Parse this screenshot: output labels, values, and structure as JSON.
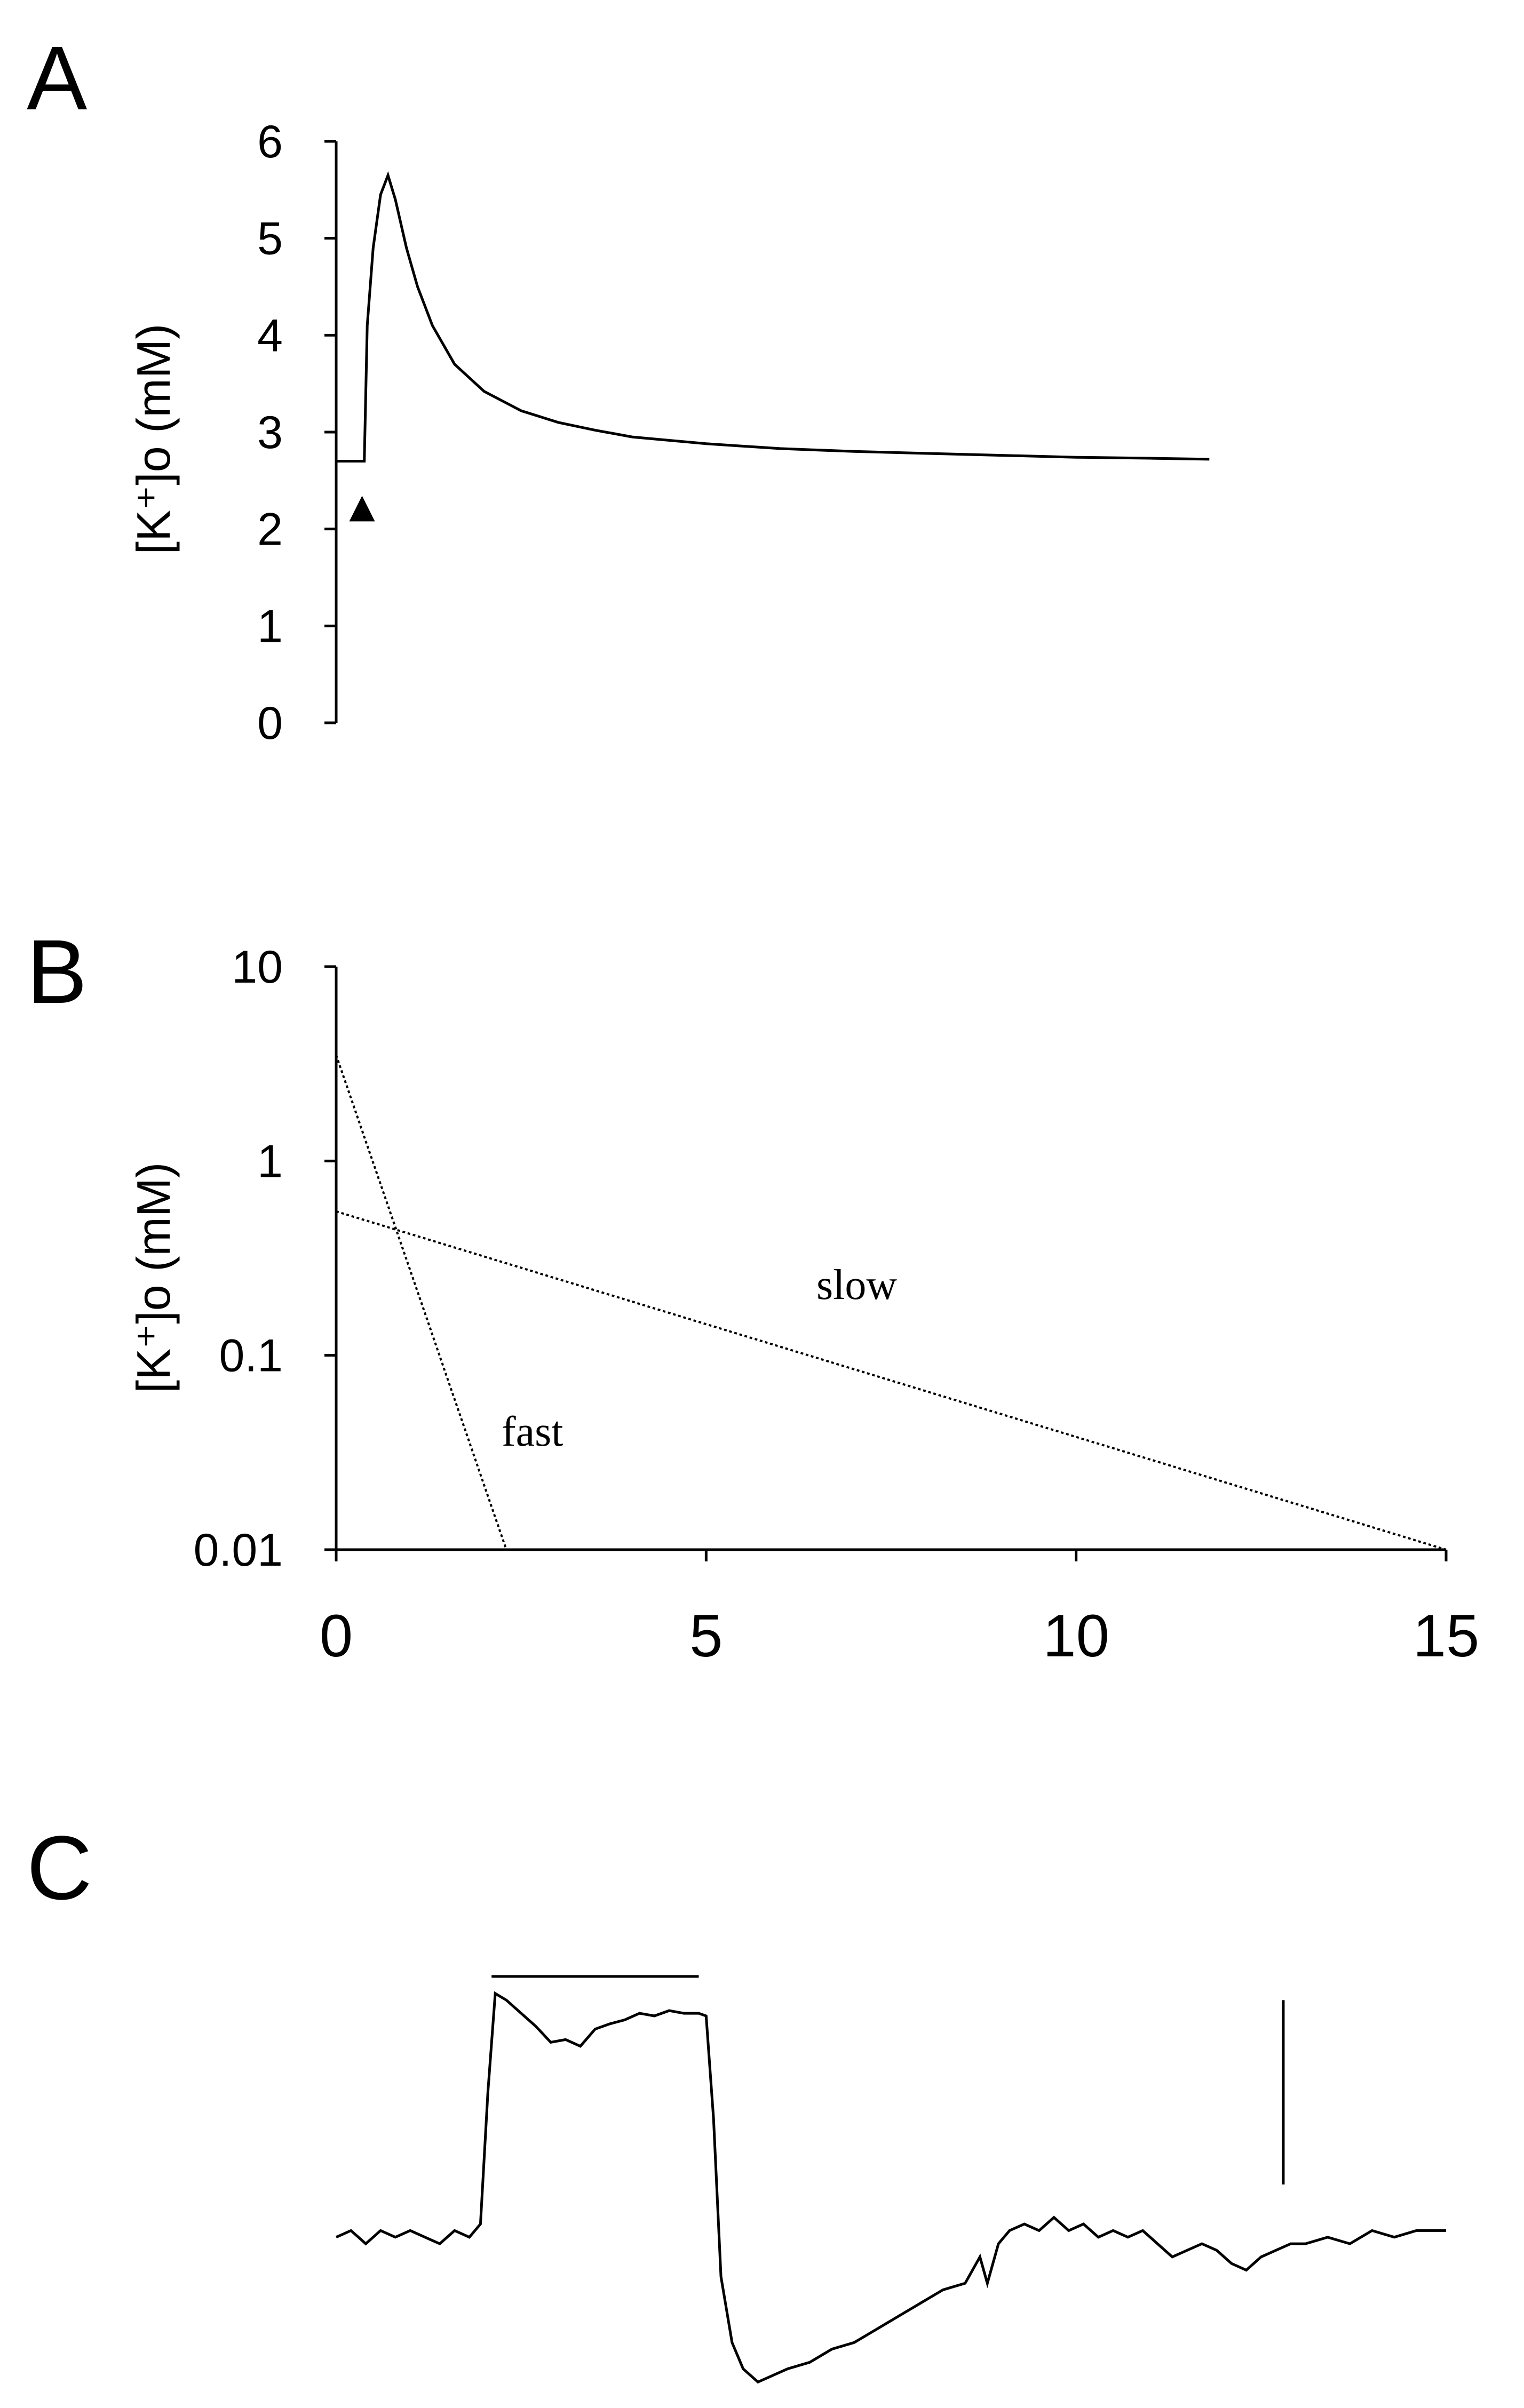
{
  "chart_data": [
    {
      "panel": "A",
      "type": "line",
      "ylabel": "[K⁺]o (mM)",
      "ylim": [
        0,
        6
      ],
      "yticks": [
        "0",
        "1",
        "2",
        "3",
        "4",
        "5",
        "6"
      ],
      "xlim": [
        0,
        15
      ],
      "series": [
        {
          "x": [
            0,
            0.38,
            0.42,
            0.5,
            0.6,
            0.7,
            0.8,
            0.95,
            1.1,
            1.3,
            1.6,
            2.0,
            2.5,
            3.0,
            3.5,
            4.0,
            5.0,
            6.0,
            7.0,
            8.0,
            9.0,
            10.0,
            11.0,
            11.8
          ],
          "y": [
            2.7,
            2.7,
            4.1,
            4.9,
            5.45,
            5.65,
            5.4,
            4.9,
            4.5,
            4.1,
            3.7,
            3.42,
            3.22,
            3.1,
            3.02,
            2.95,
            2.88,
            2.83,
            2.8,
            2.78,
            2.76,
            2.74,
            2.73,
            2.72
          ]
        }
      ],
      "annotations": [
        {
          "type": "triangle-marker",
          "x": 0.35,
          "y": 2.2
        }
      ]
    },
    {
      "panel": "B",
      "type": "line",
      "ylabel": "[K⁺]o (mM)",
      "yscale": "log",
      "ylim": [
        0.01,
        10
      ],
      "yticks": [
        "0.01",
        "0.1",
        "1",
        "10"
      ],
      "xlim": [
        0,
        15
      ],
      "xticks": [
        "0",
        "5",
        "10",
        "15"
      ],
      "series": [
        {
          "name": "fast",
          "x": [
            0,
            2.3
          ],
          "y": [
            3.5,
            0.01
          ],
          "style": "dotted"
        },
        {
          "name": "slow",
          "x": [
            0,
            15
          ],
          "y": [
            0.55,
            0.01
          ],
          "style": "dotted"
        }
      ]
    },
    {
      "panel": "C",
      "type": "line",
      "ylim": [
        -1.2,
        2.0
      ],
      "xlim": [
        0,
        15
      ],
      "stimulus_bar": {
        "x": [
          2.1,
          4.9
        ]
      },
      "scale_bar": {
        "x": 12.8,
        "y": [
          0.4,
          1.8
        ]
      },
      "series": [
        {
          "x": [
            0,
            0.2,
            0.4,
            0.6,
            0.8,
            1.0,
            1.2,
            1.4,
            1.6,
            1.8,
            1.95,
            2.05,
            2.15,
            2.3,
            2.5,
            2.7,
            2.9,
            3.1,
            3.3,
            3.5,
            3.7,
            3.9,
            4.1,
            4.3,
            4.5,
            4.7,
            4.9,
            5.0,
            5.1,
            5.2,
            5.35,
            5.5,
            5.7,
            5.9,
            6.1,
            6.4,
            6.7,
            7.0,
            7.3,
            7.6,
            7.9,
            8.2,
            8.5,
            8.7,
            8.8,
            8.95,
            9.1,
            9.3,
            9.5,
            9.7,
            9.9,
            10.1,
            10.3,
            10.5,
            10.7,
            10.9,
            11.1,
            11.3,
            11.5,
            11.7,
            11.9,
            12.1,
            12.3,
            12.5,
            12.7,
            12.9,
            13.1,
            13.4,
            13.7,
            14.0,
            14.3,
            14.6,
            15.0
          ],
          "y": [
            0.0,
            0.05,
            -0.05,
            0.05,
            0.0,
            0.05,
            0.0,
            -0.05,
            0.05,
            0.0,
            0.1,
            1.1,
            1.85,
            1.8,
            1.7,
            1.6,
            1.48,
            1.5,
            1.45,
            1.58,
            1.62,
            1.65,
            1.7,
            1.68,
            1.72,
            1.7,
            1.7,
            1.68,
            0.9,
            -0.3,
            -0.8,
            -1.0,
            -1.1,
            -1.05,
            -1.0,
            -0.95,
            -0.85,
            -0.8,
            -0.7,
            -0.6,
            -0.5,
            -0.4,
            -0.35,
            -0.15,
            -0.35,
            -0.05,
            0.05,
            0.1,
            0.05,
            0.15,
            0.05,
            0.1,
            0.0,
            0.05,
            0.0,
            0.05,
            -0.05,
            -0.15,
            -0.1,
            -0.05,
            -0.1,
            -0.2,
            -0.25,
            -0.15,
            -0.1,
            -0.05,
            -0.05,
            0.0,
            -0.05,
            0.05,
            0.0,
            0.05,
            0.05
          ]
        }
      ]
    }
  ]
}
